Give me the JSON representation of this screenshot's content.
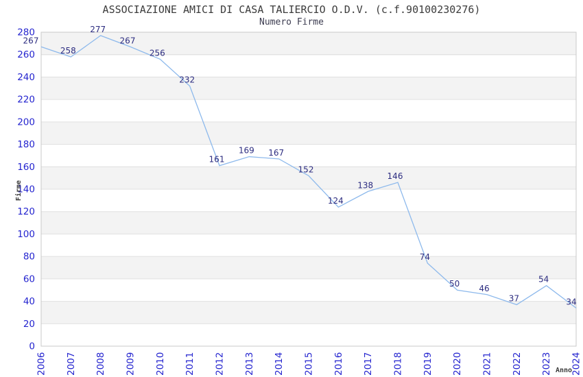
{
  "chart_data": {
    "type": "line",
    "title": "ASSOCIAZIONE AMICI DI CASA TALIERCIO O.D.V. (c.f.90100230276)",
    "subtitle": "Numero Firme",
    "xlabel": "Anno",
    "ylabel": "Firme",
    "x": [
      2006,
      2007,
      2008,
      2009,
      2010,
      2011,
      2012,
      2013,
      2014,
      2015,
      2016,
      2017,
      2018,
      2019,
      2020,
      2021,
      2022,
      2023,
      2024
    ],
    "series": [
      {
        "name": "Numero Firme",
        "values": [
          267,
          258,
          277,
          267,
          256,
          232,
          161,
          169,
          167,
          152,
          124,
          138,
          146,
          74,
          50,
          46,
          37,
          54,
          34
        ]
      }
    ],
    "ylim": [
      0,
      280
    ],
    "ytick_step": 20,
    "grid": "horizontal-gridlines-with-alternating-bands",
    "legend": "none",
    "point_labels_shown": true,
    "x_tick_rotation_deg": -90,
    "colors": {
      "line": "#8db9ec",
      "tick_label": "#2424cf",
      "value_label": "#2c2c80",
      "title": "#3c3c3c",
      "subtitle": "#3c3c50",
      "axis_title": "#3a3a3a",
      "band": "#f3f3f3",
      "grid": "#e0e0e0",
      "border": "#c8c8c8",
      "background": "#ffffff"
    }
  }
}
